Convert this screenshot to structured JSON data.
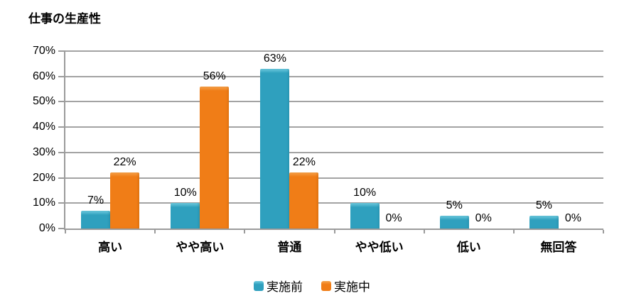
{
  "title": "仕事の生産性",
  "chart_data": {
    "type": "bar",
    "title": "仕事の生産性",
    "categories": [
      "高い",
      "やや高い",
      "普通",
      "やや低い",
      "低い",
      "無回答"
    ],
    "series": [
      {
        "name": "実施前",
        "color": "#2FA0BE",
        "color_light": "#6FCBDF",
        "color_dark": "#1F7E99",
        "values": [
          7,
          10,
          63,
          10,
          5,
          5
        ]
      },
      {
        "name": "実施中",
        "color": "#F07D17",
        "color_light": "#F6A34C",
        "color_dark": "#BE5E07",
        "values": [
          22,
          56,
          22,
          0,
          0,
          0
        ]
      }
    ],
    "xlabel": "",
    "ylabel": "",
    "ylim": [
      0,
      70
    ],
    "ytick_step": 10,
    "ytick_labels": [
      "0%",
      "10%",
      "20%",
      "30%",
      "40%",
      "50%",
      "60%",
      "70%"
    ],
    "data_labels": true,
    "data_label_suffix": "%",
    "grid": true,
    "legend_position": "bottom"
  },
  "colors": {
    "background": "#FFFFFF",
    "gridline": "#A3A3A3",
    "axis": "#9B9B9B",
    "text": "#000000"
  }
}
